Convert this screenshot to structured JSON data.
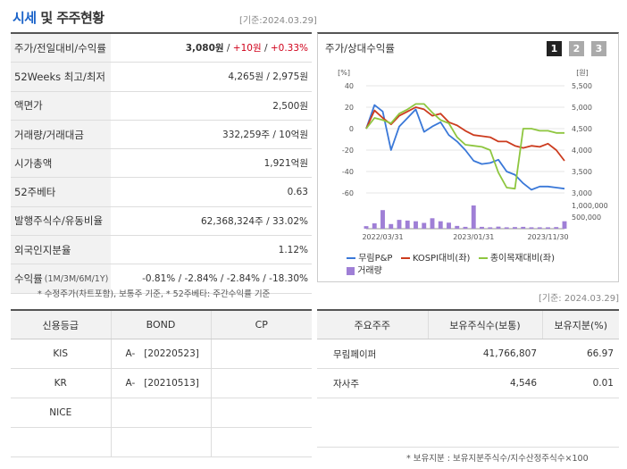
{
  "header": {
    "title_accent": "시세",
    "title_rest": " 및 주주현황",
    "date": "[기준:2024.03.29]"
  },
  "stats": [
    {
      "label": "주가/전일대비/수익률",
      "sub": "",
      "v1": "3,080원",
      "sep1": " / ",
      "v2": "+10원",
      "sep2": " / ",
      "v3": "+0.33%"
    },
    {
      "label": "52Weeks 최고/최저",
      "sub": "",
      "value": "4,265원 / 2,975원"
    },
    {
      "label": "액면가",
      "sub": "",
      "value": "2,500원"
    },
    {
      "label": "거래량/거래대금",
      "sub": "",
      "value": "332,259주 / 10억원"
    },
    {
      "label": "시가총액",
      "sub": "",
      "value": "1,921억원"
    },
    {
      "label": "52주베타",
      "sub": "",
      "value": "0.63"
    },
    {
      "label": "발행주식수/유동비율",
      "sub": "",
      "value": "62,368,324주 / 33.02%"
    },
    {
      "label": "외국인지분율",
      "sub": "",
      "value": "1.12%"
    },
    {
      "label": "수익률",
      "sub": "(1M/3M/6M/1Y)",
      "value": "-0.81% / -2.84% / -2.84% / -18.30%"
    }
  ],
  "left_note": "* 수정주가(차트포함), 보통주 기준, * 52주베타: 주간수익률 기준",
  "chart_panel": {
    "title": "주가/상대수익률",
    "buttons": [
      "1",
      "2",
      "3"
    ],
    "date": "[기준: 2024.03.29]"
  },
  "chart_data": {
    "type": "line",
    "y_left_unit": "[%]",
    "y_right_unit": "[원]",
    "y_left_ticks": [
      "40",
      "20",
      "0",
      "-20",
      "-40",
      "-60"
    ],
    "y_left_range": [
      -60,
      40
    ],
    "y_right_ticks": [
      "5,500",
      "5,000",
      "4,500",
      "4,000",
      "3,500",
      "3,000"
    ],
    "y_right_range": [
      3000,
      5500
    ],
    "volume_ticks": [
      "1,000,000",
      "500,000"
    ],
    "volume_range": [
      0,
      1000000
    ],
    "x_labels": [
      "2022/03/31",
      "2023/01/31",
      "2023/11/30"
    ],
    "x_count": 25,
    "series": [
      {
        "name": "무림P&P",
        "color": "#3a78d8",
        "values": [
          0,
          22,
          16,
          -20,
          2,
          10,
          18,
          -3,
          2,
          6,
          -6,
          -12,
          -20,
          -30,
          -33,
          -32,
          -29,
          -40,
          -43,
          -51,
          -57,
          -54,
          -54,
          -55,
          -56
        ]
      },
      {
        "name": "KOSPI대비(좌)",
        "color": "#cc3b1e",
        "values": [
          0,
          17,
          10,
          4,
          12,
          16,
          20,
          18,
          12,
          14,
          6,
          3,
          -2,
          -6,
          -7,
          -8,
          -12,
          -12,
          -16,
          -18,
          -16,
          -17,
          -14,
          -20,
          -30
        ]
      },
      {
        "name": "종이목재대비(좌)",
        "color": "#8ec63f",
        "values": [
          0,
          10,
          8,
          5,
          14,
          18,
          23,
          23,
          15,
          8,
          5,
          -8,
          -15,
          -16,
          -17,
          -20,
          -41,
          -55,
          -56,
          0,
          0,
          -2,
          -2,
          -4,
          -4
        ]
      }
    ],
    "volume": {
      "name": "거래량",
      "color": "#9f7fd6",
      "values": [
        110000,
        230000,
        800000,
        200000,
        380000,
        350000,
        320000,
        250000,
        450000,
        320000,
        260000,
        120000,
        80000,
        1000000,
        80000,
        60000,
        90000,
        60000,
        70000,
        80000,
        60000,
        60000,
        60000,
        70000,
        320000
      ]
    }
  },
  "credit_table": {
    "headers": [
      "신용등급",
      "BOND",
      "CP"
    ],
    "rows": [
      [
        "KIS",
        "A-   [20220523]",
        ""
      ],
      [
        "KR",
        "A-   [20210513]",
        ""
      ],
      [
        "NICE",
        "",
        ""
      ],
      [
        "",
        "",
        ""
      ]
    ]
  },
  "holders_table": {
    "headers": [
      "주요주주",
      "보유주식수(보통)",
      "보유지분(%)"
    ],
    "rows": [
      [
        "무림페이퍼",
        "41,766,807",
        "66.97"
      ],
      [
        "자사주",
        "4,546",
        "0.01"
      ]
    ]
  },
  "bottom_note": "* 보유지분 : 보유지분주식수/지수산정주식수×100"
}
